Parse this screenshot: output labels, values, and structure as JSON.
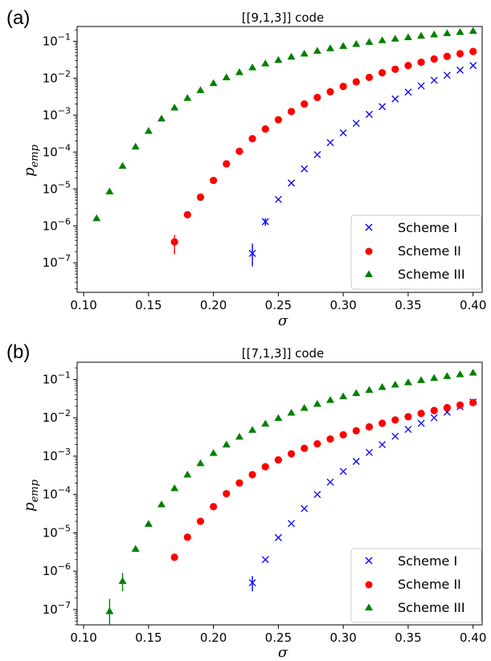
{
  "chart_data": [
    {
      "type": "scatter",
      "panel_label": "(a)",
      "title": "[[9,1,3]] code",
      "xlabel": "σ",
      "ylabel_base": "p",
      "ylabel_sub": "emp",
      "xlim": [
        0.095,
        0.407
      ],
      "ylim_log10": [
        -7.8,
        -0.6
      ],
      "yscale": "log",
      "x_ticks": [
        0.1,
        0.15,
        0.2,
        0.25,
        0.3,
        0.35,
        0.4
      ],
      "x_tick_labels": [
        "0.10",
        "0.15",
        "0.20",
        "0.25",
        "0.30",
        "0.35",
        "0.40"
      ],
      "y_tick_exponents": [
        -7,
        -6,
        -5,
        -4,
        -3,
        -2,
        -1
      ],
      "legend_position": "lower right",
      "series": [
        {
          "name": "Scheme I",
          "marker": "x",
          "color": "#0000ff",
          "x": [
            0.23,
            0.24,
            0.25,
            0.26,
            0.27,
            0.28,
            0.29,
            0.3,
            0.31,
            0.32,
            0.33,
            0.34,
            0.35,
            0.36,
            0.37,
            0.38,
            0.39,
            0.4
          ],
          "y": [
            1.8e-07,
            1.3e-06,
            5.2e-06,
            1.45e-05,
            3.5e-05,
            8.5e-05,
            0.00018,
            0.00033,
            0.0006,
            0.00105,
            0.0017,
            0.00275,
            0.0042,
            0.0062,
            0.0088,
            0.012,
            0.0165,
            0.022
          ],
          "err_low": [
            1e-07,
            3e-07,
            0,
            0,
            0,
            0,
            0,
            0,
            0,
            0,
            0,
            0,
            0,
            0,
            0,
            0,
            0,
            0
          ],
          "err_high": [
            1.5e-07,
            3e-07,
            0,
            0,
            0,
            0,
            0,
            0,
            0,
            0,
            0,
            0,
            0,
            0,
            0,
            0,
            0,
            0
          ]
        },
        {
          "name": "Scheme II",
          "marker": "o",
          "color": "#ff0000",
          "x": [
            0.17,
            0.18,
            0.19,
            0.2,
            0.21,
            0.22,
            0.23,
            0.24,
            0.25,
            0.26,
            0.27,
            0.28,
            0.29,
            0.3,
            0.31,
            0.32,
            0.33,
            0.34,
            0.35,
            0.36,
            0.37,
            0.38,
            0.39,
            0.4
          ],
          "y": [
            3.7e-07,
            2e-06,
            6e-06,
            1.7e-05,
            4.8e-05,
            0.000105,
            0.00023,
            0.00042,
            0.00075,
            0.00125,
            0.002,
            0.003,
            0.0043,
            0.006,
            0.008,
            0.0105,
            0.014,
            0.0175,
            0.022,
            0.027,
            0.033,
            0.039,
            0.046,
            0.053
          ],
          "err_low": [
            2e-07,
            0,
            0,
            0,
            0,
            0,
            0,
            0,
            0,
            0,
            0,
            0,
            0,
            0,
            0,
            0,
            0,
            0,
            0,
            0,
            0,
            0,
            0,
            0
          ],
          "err_high": [
            2e-07,
            0,
            0,
            0,
            0,
            0,
            0,
            0,
            0,
            0,
            0,
            0,
            0,
            0,
            0,
            0,
            0,
            0,
            0,
            0,
            0,
            0,
            0,
            0
          ]
        },
        {
          "name": "Scheme III",
          "marker": "^",
          "color": "#008000",
          "x": [
            0.11,
            0.12,
            0.13,
            0.14,
            0.15,
            0.16,
            0.17,
            0.18,
            0.19,
            0.2,
            0.21,
            0.22,
            0.23,
            0.24,
            0.25,
            0.26,
            0.27,
            0.28,
            0.29,
            0.3,
            0.31,
            0.32,
            0.33,
            0.34,
            0.35,
            0.36,
            0.37,
            0.38,
            0.39,
            0.4
          ],
          "y": [
            1.6e-06,
            8.5e-06,
            4.2e-05,
            0.00014,
            0.00037,
            0.0008,
            0.0016,
            0.0029,
            0.0047,
            0.0073,
            0.0105,
            0.0145,
            0.0195,
            0.025,
            0.031,
            0.038,
            0.046,
            0.055,
            0.064,
            0.074,
            0.084,
            0.095,
            0.106,
            0.117,
            0.128,
            0.14,
            0.152,
            0.164,
            0.177,
            0.19
          ],
          "err_low": [
            0,
            0,
            0,
            0,
            0,
            0,
            0,
            0,
            0,
            0,
            0,
            0,
            0,
            0,
            0,
            0,
            0,
            0,
            0,
            0,
            0,
            0,
            0,
            0,
            0,
            0,
            0,
            0,
            0,
            0
          ],
          "err_high": [
            0,
            0,
            0,
            0,
            0,
            0,
            0,
            0,
            0,
            0,
            0,
            0,
            0,
            0,
            0,
            0,
            0,
            0,
            0,
            0,
            0,
            0,
            0,
            0,
            0,
            0,
            0,
            0,
            0,
            0
          ]
        }
      ]
    },
    {
      "type": "scatter",
      "panel_label": "(b)",
      "title": "[[7,1,3]] code",
      "xlabel": "σ",
      "ylabel_base": "p",
      "ylabel_sub": "emp",
      "xlim": [
        0.095,
        0.407
      ],
      "ylim_log10": [
        -7.4,
        -0.55
      ],
      "yscale": "log",
      "x_ticks": [
        0.1,
        0.15,
        0.2,
        0.25,
        0.3,
        0.35,
        0.4
      ],
      "x_tick_labels": [
        "0.10",
        "0.15",
        "0.20",
        "0.25",
        "0.30",
        "0.35",
        "0.40"
      ],
      "y_tick_exponents": [
        -7,
        -6,
        -5,
        -4,
        -3,
        -2,
        -1
      ],
      "legend_position": "lower right",
      "series": [
        {
          "name": "Scheme I",
          "marker": "x",
          "color": "#0000ff",
          "x": [
            0.23,
            0.24,
            0.25,
            0.26,
            0.27,
            0.28,
            0.29,
            0.3,
            0.31,
            0.32,
            0.33,
            0.34,
            0.35,
            0.36,
            0.37,
            0.38,
            0.39,
            0.4
          ],
          "y": [
            5e-07,
            2e-06,
            7.5e-06,
            1.75e-05,
            4.3e-05,
            0.0001,
            0.00021,
            0.0004,
            0.00073,
            0.00125,
            0.002,
            0.0033,
            0.005,
            0.0072,
            0.01,
            0.014,
            0.0195,
            0.026
          ],
          "err_low": [
            2e-07,
            0,
            0,
            0,
            0,
            0,
            0,
            0,
            0,
            0,
            0,
            0,
            0,
            0,
            0,
            0,
            0,
            0
          ],
          "err_high": [
            2.5e-07,
            0,
            0,
            0,
            0,
            0,
            0,
            0,
            0,
            0,
            0,
            0,
            0,
            0,
            0,
            0,
            0,
            0
          ]
        },
        {
          "name": "Scheme II",
          "marker": "o",
          "color": "#ff0000",
          "x": [
            0.17,
            0.18,
            0.19,
            0.2,
            0.21,
            0.22,
            0.23,
            0.24,
            0.25,
            0.26,
            0.27,
            0.28,
            0.29,
            0.3,
            0.31,
            0.32,
            0.33,
            0.34,
            0.35,
            0.36,
            0.37,
            0.38,
            0.39,
            0.4
          ],
          "y": [
            2.3e-06,
            7.7e-06,
            2e-05,
            4.8e-05,
            0.000105,
            0.0002,
            0.00033,
            0.00053,
            0.0008,
            0.00115,
            0.0016,
            0.0021,
            0.0028,
            0.0036,
            0.0046,
            0.0058,
            0.0072,
            0.0088,
            0.0107,
            0.013,
            0.0155,
            0.0185,
            0.0215,
            0.025
          ],
          "err_low": [
            0,
            0,
            0,
            0,
            0,
            0,
            0,
            0,
            0,
            0,
            0,
            0,
            0,
            0,
            0,
            0,
            0,
            0,
            0,
            0,
            0,
            0,
            0,
            0
          ],
          "err_high": [
            0,
            0,
            0,
            0,
            0,
            0,
            0,
            0,
            0,
            0,
            0,
            0,
            0,
            0,
            0,
            0,
            0,
            0,
            0,
            0,
            0,
            0,
            0,
            0
          ]
        },
        {
          "name": "Scheme III",
          "marker": "^",
          "color": "#008000",
          "x": [
            0.12,
            0.13,
            0.14,
            0.15,
            0.16,
            0.17,
            0.18,
            0.19,
            0.2,
            0.21,
            0.22,
            0.23,
            0.24,
            0.25,
            0.26,
            0.27,
            0.28,
            0.29,
            0.3,
            0.31,
            0.32,
            0.33,
            0.34,
            0.35,
            0.36,
            0.37,
            0.38,
            0.39,
            0.4
          ],
          "y": [
            9e-08,
            5.5e-07,
            3.8e-06,
            1.7e-05,
            5.5e-05,
            0.000145,
            0.00033,
            0.00065,
            0.0012,
            0.002,
            0.0032,
            0.0048,
            0.007,
            0.0098,
            0.0135,
            0.018,
            0.023,
            0.029,
            0.036,
            0.044,
            0.053,
            0.063,
            0.073,
            0.084,
            0.096,
            0.109,
            0.122,
            0.136,
            0.15
          ],
          "err_low": [
            6e-08,
            2.5e-07,
            0,
            0,
            0,
            0,
            0,
            0,
            0,
            0,
            0,
            0,
            0,
            0,
            0,
            0,
            0,
            0,
            0,
            0,
            0,
            0,
            0,
            0,
            0,
            0,
            0,
            0,
            0
          ],
          "err_high": [
            1e-07,
            3.5e-07,
            0,
            0,
            0,
            0,
            0,
            0,
            0,
            0,
            0,
            0,
            0,
            0,
            0,
            0,
            0,
            0,
            0,
            0,
            0,
            0,
            0,
            0,
            0,
            0,
            0,
            0,
            0
          ]
        }
      ]
    }
  ]
}
